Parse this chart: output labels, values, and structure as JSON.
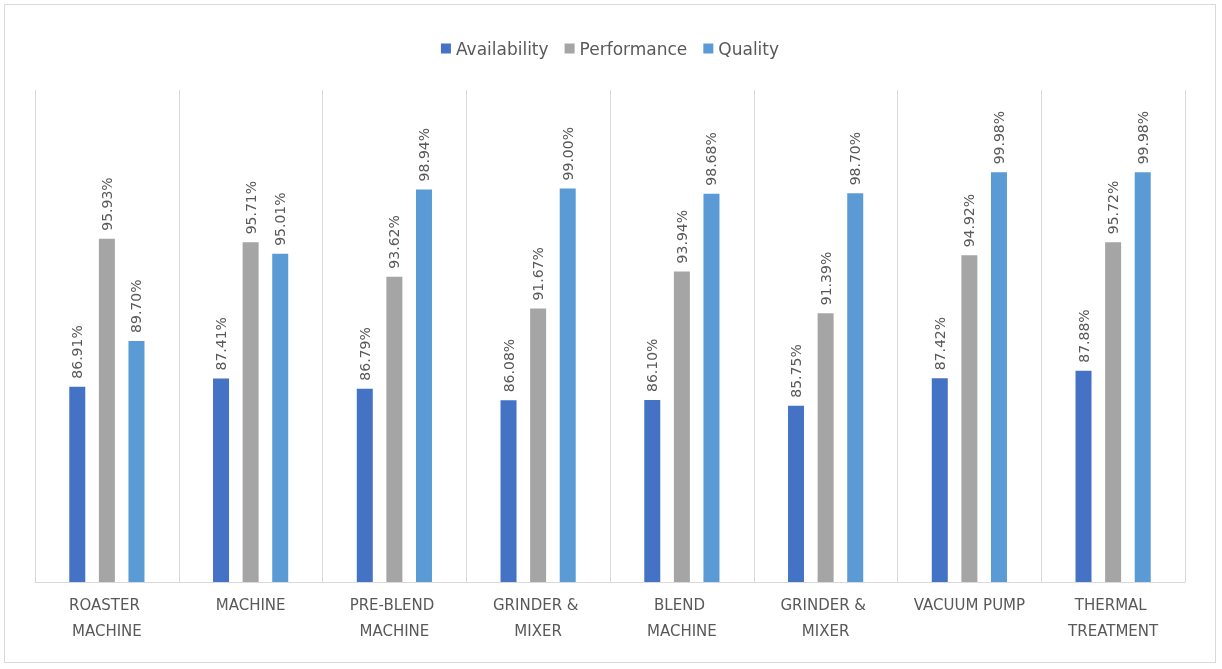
{
  "chart_data": {
    "type": "bar",
    "categories": [
      "ROASTER MACHINE",
      "MACHINE",
      "PRE-BLEND MACHINE",
      "GRINDER & MIXER",
      "BLEND MACHINE",
      "GRINDER & MIXER",
      "VACUUM PUMP",
      "THERMAL TREATMENT"
    ],
    "series": [
      {
        "name": "Availability",
        "color": "#4472c4",
        "values": [
          86.91,
          87.41,
          86.79,
          86.08,
          86.1,
          85.75,
          87.42,
          87.88
        ],
        "value_labels": [
          "86.91%",
          "87.41%",
          "86.79%",
          "86.08%",
          "86.10%",
          "85.75%",
          "87.42%",
          "87.88%"
        ]
      },
      {
        "name": "Performance",
        "color": "#a5a5a5",
        "values": [
          95.93,
          95.71,
          93.62,
          91.67,
          93.94,
          91.39,
          94.92,
          95.72
        ],
        "value_labels": [
          "95.93%",
          "95.71%",
          "93.62%",
          "91.67%",
          "93.94%",
          "91.39%",
          "94.92%",
          "95.72%"
        ]
      },
      {
        "name": "Quality",
        "color": "#5b9bd5",
        "values": [
          89.7,
          95.01,
          98.94,
          99.0,
          98.68,
          98.7,
          99.98,
          99.98
        ],
        "value_labels": [
          "89.70%",
          "95.01%",
          "98.94%",
          "99.00%",
          "98.68%",
          "98.70%",
          "99.98%",
          "99.98%"
        ]
      }
    ],
    "ylim": [
      75,
      105
    ],
    "tick_labels": "x",
    "grid": "x",
    "legend": "top"
  }
}
